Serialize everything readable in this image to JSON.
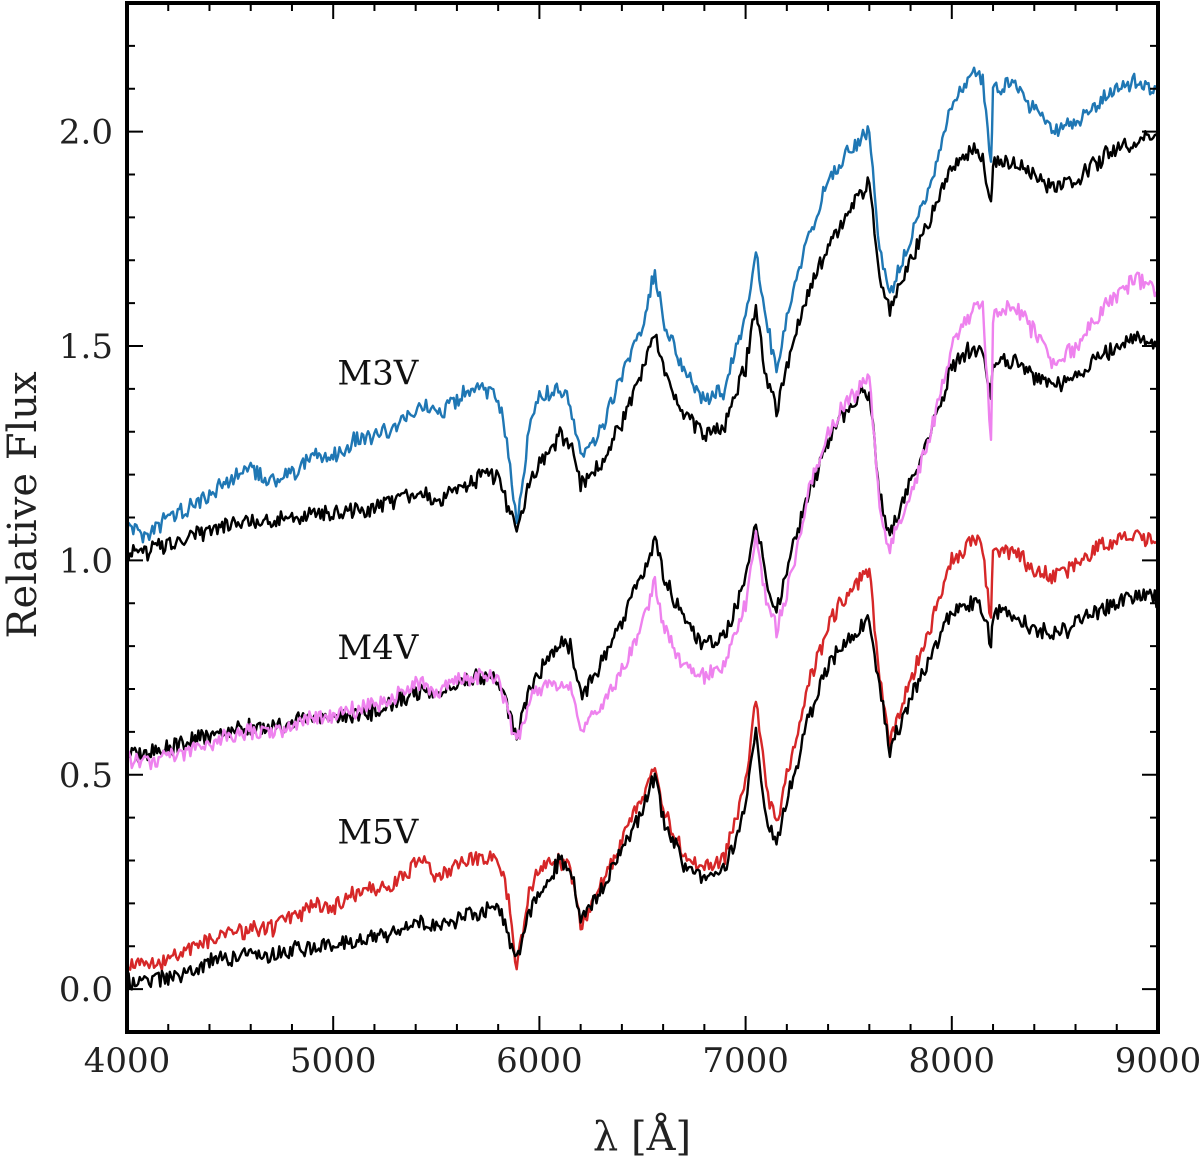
{
  "chart_data": {
    "type": "line",
    "title": "",
    "xlabel": "λ [Å]",
    "ylabel": "Relative Flux",
    "xlim": [
      4000,
      9000
    ],
    "ylim": [
      -0.1,
      2.3
    ],
    "xticks": [
      4000,
      5000,
      6000,
      7000,
      8000,
      9000
    ],
    "yticks": [
      0.0,
      0.5,
      1.0,
      1.5,
      2.0
    ],
    "xtick_labels": [
      "4000",
      "5000",
      "6000",
      "7000",
      "8000",
      "9000"
    ],
    "ytick_labels": [
      "0.0",
      "0.5",
      "1.0",
      "1.5",
      "2.0"
    ],
    "grid": false,
    "annotations": [
      {
        "text": "M3V",
        "x": 5020,
        "y": 1.41
      },
      {
        "text": "M4V",
        "x": 5020,
        "y": 0.77
      },
      {
        "text": "M5V",
        "x": 5020,
        "y": 0.34
      }
    ],
    "series": [
      {
        "color": "#1f77b4",
        "x": [
          4000,
          4100,
          4200,
          4300,
          4400,
          4500,
          4600,
          4700,
          4800,
          4900,
          5000,
          5100,
          5200,
          5300,
          5400,
          5450,
          5500,
          5600,
          5700,
          5800,
          5850,
          5890,
          5950,
          6000,
          6100,
          6150,
          6200,
          6300,
          6400,
          6500,
          6560,
          6600,
          6700,
          6800,
          6900,
          7000,
          7050,
          7100,
          7150,
          7200,
          7300,
          7400,
          7500,
          7600,
          7650,
          7700,
          7800,
          7900,
          8000,
          8100,
          8150,
          8190,
          8200,
          8300,
          8400,
          8500,
          8600,
          8700,
          8800,
          8900,
          9000
        ],
        "y": [
          1.08,
          1.06,
          1.1,
          1.12,
          1.15,
          1.19,
          1.21,
          1.18,
          1.2,
          1.25,
          1.24,
          1.28,
          1.29,
          1.31,
          1.35,
          1.36,
          1.33,
          1.38,
          1.4,
          1.38,
          1.25,
          1.08,
          1.3,
          1.38,
          1.4,
          1.36,
          1.24,
          1.31,
          1.43,
          1.55,
          1.67,
          1.56,
          1.44,
          1.38,
          1.4,
          1.57,
          1.72,
          1.55,
          1.45,
          1.57,
          1.75,
          1.88,
          1.96,
          2.0,
          1.73,
          1.62,
          1.75,
          1.88,
          2.06,
          2.13,
          2.12,
          1.92,
          2.1,
          2.11,
          2.05,
          2.0,
          2.02,
          2.06,
          2.1,
          2.12,
          2.09
        ]
      },
      {
        "color": "#000000",
        "x": [
          4000,
          4100,
          4200,
          4300,
          4400,
          4500,
          4600,
          4700,
          4800,
          4900,
          5000,
          5100,
          5200,
          5300,
          5400,
          5450,
          5500,
          5600,
          5700,
          5800,
          5850,
          5890,
          5950,
          6000,
          6100,
          6150,
          6200,
          6300,
          6400,
          6500,
          6560,
          6600,
          6700,
          6800,
          6900,
          7000,
          7050,
          7100,
          7150,
          7200,
          7300,
          7400,
          7500,
          7600,
          7650,
          7700,
          7800,
          7900,
          8000,
          8100,
          8150,
          8190,
          8200,
          8300,
          8400,
          8500,
          8600,
          8700,
          8800,
          8900,
          9000
        ],
        "y": [
          1.02,
          1.02,
          1.04,
          1.05,
          1.07,
          1.08,
          1.09,
          1.09,
          1.1,
          1.1,
          1.11,
          1.12,
          1.12,
          1.14,
          1.15,
          1.15,
          1.14,
          1.17,
          1.19,
          1.2,
          1.12,
          1.07,
          1.17,
          1.22,
          1.29,
          1.27,
          1.18,
          1.23,
          1.32,
          1.44,
          1.53,
          1.45,
          1.34,
          1.29,
          1.32,
          1.45,
          1.6,
          1.42,
          1.35,
          1.45,
          1.62,
          1.73,
          1.82,
          1.88,
          1.65,
          1.58,
          1.7,
          1.8,
          1.92,
          1.96,
          1.94,
          1.82,
          1.93,
          1.93,
          1.9,
          1.87,
          1.89,
          1.93,
          1.96,
          1.98,
          1.99
        ]
      },
      {
        "color": "#000000",
        "x": [
          4000,
          4100,
          4200,
          4300,
          4400,
          4500,
          4600,
          4700,
          4800,
          4900,
          5000,
          5100,
          5200,
          5300,
          5400,
          5450,
          5500,
          5600,
          5700,
          5800,
          5850,
          5890,
          5950,
          6000,
          6100,
          6150,
          6200,
          6300,
          6400,
          6500,
          6560,
          6600,
          6700,
          6800,
          6900,
          7000,
          7050,
          7100,
          7150,
          7200,
          7300,
          7400,
          7500,
          7600,
          7650,
          7700,
          7800,
          7900,
          8000,
          8100,
          8150,
          8190,
          8200,
          8300,
          8400,
          8500,
          8600,
          8700,
          8800,
          8900,
          9000
        ],
        "y": [
          0.55,
          0.55,
          0.56,
          0.58,
          0.59,
          0.6,
          0.61,
          0.61,
          0.62,
          0.63,
          0.63,
          0.64,
          0.65,
          0.67,
          0.69,
          0.7,
          0.68,
          0.71,
          0.73,
          0.72,
          0.65,
          0.58,
          0.7,
          0.74,
          0.81,
          0.8,
          0.68,
          0.76,
          0.86,
          0.97,
          1.05,
          0.97,
          0.86,
          0.8,
          0.82,
          0.95,
          1.1,
          0.95,
          0.88,
          0.98,
          1.15,
          1.28,
          1.36,
          1.4,
          1.15,
          1.06,
          1.18,
          1.3,
          1.45,
          1.5,
          1.49,
          1.38,
          1.47,
          1.47,
          1.43,
          1.41,
          1.43,
          1.47,
          1.5,
          1.52,
          1.51
        ]
      },
      {
        "color": "#ee82ee",
        "x": [
          4000,
          4100,
          4200,
          4300,
          4400,
          4500,
          4600,
          4700,
          4800,
          4900,
          5000,
          5100,
          5200,
          5300,
          5400,
          5450,
          5500,
          5600,
          5700,
          5800,
          5850,
          5890,
          5950,
          6000,
          6100,
          6150,
          6200,
          6300,
          6400,
          6500,
          6560,
          6600,
          6700,
          6800,
          6900,
          7000,
          7050,
          7100,
          7150,
          7200,
          7300,
          7400,
          7500,
          7600,
          7650,
          7700,
          7800,
          7900,
          8000,
          8100,
          8150,
          8190,
          8200,
          8300,
          8400,
          8500,
          8600,
          8700,
          8800,
          8900,
          9000
        ],
        "y": [
          0.54,
          0.53,
          0.54,
          0.56,
          0.57,
          0.59,
          0.6,
          0.6,
          0.61,
          0.63,
          0.63,
          0.65,
          0.66,
          0.68,
          0.71,
          0.72,
          0.69,
          0.72,
          0.73,
          0.72,
          0.64,
          0.57,
          0.67,
          0.7,
          0.71,
          0.7,
          0.6,
          0.66,
          0.74,
          0.85,
          0.95,
          0.85,
          0.75,
          0.73,
          0.76,
          0.9,
          1.05,
          0.91,
          0.84,
          0.92,
          1.15,
          1.3,
          1.38,
          1.42,
          1.12,
          1.03,
          1.16,
          1.3,
          1.5,
          1.58,
          1.6,
          1.28,
          1.57,
          1.6,
          1.53,
          1.45,
          1.5,
          1.57,
          1.62,
          1.66,
          1.63
        ]
      },
      {
        "color": "#d62728",
        "x": [
          4000,
          4100,
          4200,
          4300,
          4400,
          4500,
          4600,
          4700,
          4800,
          4900,
          5000,
          5100,
          5200,
          5300,
          5400,
          5450,
          5500,
          5600,
          5700,
          5800,
          5850,
          5890,
          5950,
          6000,
          6100,
          6150,
          6200,
          6300,
          6400,
          6500,
          6560,
          6600,
          6700,
          6800,
          6900,
          7000,
          7050,
          7100,
          7150,
          7200,
          7300,
          7400,
          7500,
          7600,
          7650,
          7700,
          7800,
          7900,
          8000,
          8100,
          8150,
          8190,
          8200,
          8300,
          8400,
          8500,
          8600,
          8700,
          8800,
          8900,
          9000
        ],
        "y": [
          0.06,
          0.05,
          0.07,
          0.09,
          0.11,
          0.13,
          0.14,
          0.14,
          0.16,
          0.19,
          0.19,
          0.22,
          0.23,
          0.25,
          0.29,
          0.3,
          0.26,
          0.29,
          0.31,
          0.3,
          0.21,
          0.05,
          0.22,
          0.28,
          0.3,
          0.28,
          0.15,
          0.24,
          0.35,
          0.44,
          0.53,
          0.42,
          0.31,
          0.28,
          0.31,
          0.48,
          0.69,
          0.46,
          0.38,
          0.5,
          0.7,
          0.85,
          0.93,
          0.98,
          0.72,
          0.58,
          0.72,
          0.85,
          1.0,
          1.05,
          1.03,
          0.85,
          1.02,
          1.02,
          0.98,
          0.96,
          0.99,
          1.03,
          1.05,
          1.06,
          1.04
        ]
      },
      {
        "color": "#000000",
        "x": [
          4000,
          4100,
          4200,
          4300,
          4400,
          4500,
          4600,
          4700,
          4800,
          4900,
          5000,
          5100,
          5200,
          5300,
          5400,
          5450,
          5500,
          5600,
          5700,
          5800,
          5850,
          5890,
          5950,
          6000,
          6100,
          6150,
          6200,
          6300,
          6400,
          6500,
          6560,
          6600,
          6700,
          6800,
          6900,
          7000,
          7050,
          7100,
          7150,
          7200,
          7300,
          7400,
          7500,
          7600,
          7650,
          7700,
          7800,
          7900,
          8000,
          8100,
          8150,
          8190,
          8200,
          8300,
          8400,
          8500,
          8600,
          8700,
          8800,
          8900,
          9000
        ],
        "y": [
          0.02,
          0.02,
          0.03,
          0.04,
          0.06,
          0.07,
          0.08,
          0.08,
          0.09,
          0.1,
          0.1,
          0.11,
          0.12,
          0.13,
          0.15,
          0.15,
          0.14,
          0.16,
          0.18,
          0.19,
          0.13,
          0.07,
          0.18,
          0.22,
          0.3,
          0.29,
          0.15,
          0.23,
          0.33,
          0.42,
          0.5,
          0.4,
          0.29,
          0.26,
          0.28,
          0.42,
          0.6,
          0.4,
          0.33,
          0.44,
          0.62,
          0.76,
          0.82,
          0.86,
          0.7,
          0.56,
          0.68,
          0.78,
          0.88,
          0.9,
          0.89,
          0.8,
          0.88,
          0.87,
          0.84,
          0.83,
          0.85,
          0.88,
          0.9,
          0.92,
          0.91
        ]
      }
    ]
  }
}
